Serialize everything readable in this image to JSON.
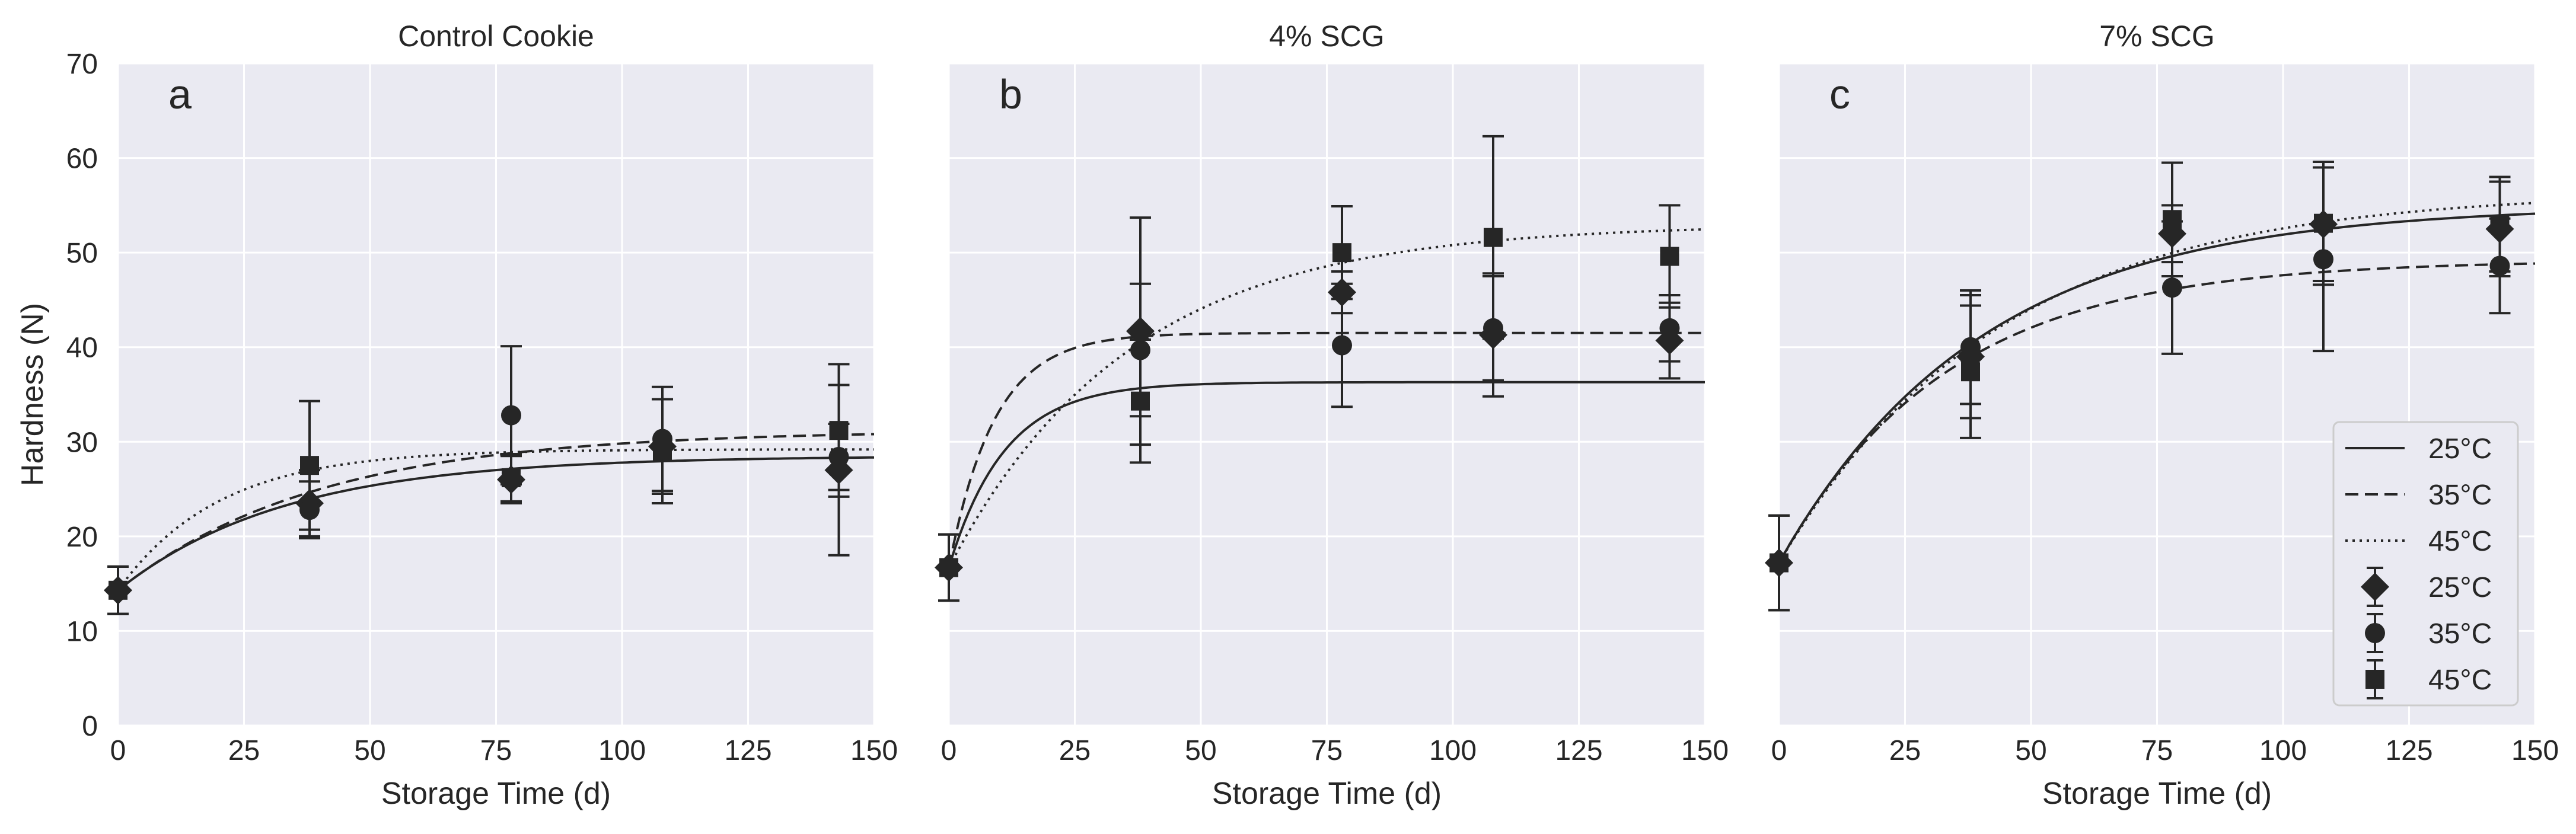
{
  "figure": {
    "ylabel": "Hardness (N)",
    "xlabel": "Storage Time (d)",
    "legend": {
      "placement": "lower-right of panel c",
      "entries": [
        {
          "label": "25°C",
          "kind": "line",
          "style": "solid"
        },
        {
          "label": "35°C",
          "kind": "line",
          "style": "dashed"
        },
        {
          "label": "45°C",
          "kind": "line",
          "style": "dotted"
        },
        {
          "label": "25°C",
          "kind": "marker",
          "marker": "diamond"
        },
        {
          "label": "35°C",
          "kind": "marker",
          "marker": "circle"
        },
        {
          "label": "45°C",
          "kind": "marker",
          "marker": "square"
        }
      ]
    },
    "colors": {
      "panel_bg": "#eaeaf2",
      "grid": "#ffffff",
      "ink": "#262626"
    }
  },
  "chart_data": [
    {
      "type": "scatter",
      "panel_letter": "a",
      "title": "Control Cookie",
      "xlabel": "Storage Time (d)",
      "ylabel": "Hardness (N)",
      "xlim": [
        0,
        150
      ],
      "ylim": [
        0,
        70
      ],
      "xticks": [
        0,
        25,
        50,
        75,
        100,
        125,
        150
      ],
      "yticks": [
        0,
        10,
        20,
        30,
        40,
        50,
        60,
        70
      ],
      "grid": true,
      "series": [
        {
          "name": "25°C",
          "marker": "diamond",
          "line": "solid",
          "points": [
            {
              "x": 0,
              "y": 14.3,
              "err": 2.5
            },
            {
              "x": 38,
              "y": 23.5,
              "err": 3.5
            },
            {
              "x": 78,
              "y": 26.0,
              "err": 2.5
            },
            {
              "x": 108,
              "y": 29.5,
              "err": 5.0
            },
            {
              "x": 143,
              "y": 27.0,
              "err": 9.0
            }
          ],
          "fit": {
            "y0": 14.3,
            "ymax": 28.5,
            "k": 0.03
          }
        },
        {
          "name": "35°C",
          "marker": "circle",
          "line": "dashed",
          "points": [
            {
              "x": 0,
              "y": 14.3,
              "err": 2.5
            },
            {
              "x": 38,
              "y": 22.8,
              "err": 3.0
            },
            {
              "x": 78,
              "y": 32.8,
              "err": 7.3
            },
            {
              "x": 108,
              "y": 30.3,
              "err": 5.5
            },
            {
              "x": 143,
              "y": 28.4,
              "err": 3.5
            }
          ],
          "fit": {
            "y0": 14.3,
            "ymax": 31.2,
            "k": 0.025
          }
        },
        {
          "name": "45°C",
          "marker": "square",
          "line": "dotted",
          "points": [
            {
              "x": 0,
              "y": 14.3,
              "err": 2.5
            },
            {
              "x": 38,
              "y": 27.5,
              "err": 6.8
            },
            {
              "x": 78,
              "y": 26.2,
              "err": 2.5
            },
            {
              "x": 108,
              "y": 29.0,
              "err": 5.5
            },
            {
              "x": 143,
              "y": 31.2,
              "err": 7.0
            }
          ],
          "fit": {
            "y0": 14.3,
            "ymax": 29.2,
            "k": 0.05
          }
        }
      ]
    },
    {
      "type": "scatter",
      "panel_letter": "b",
      "title": "4% SCG",
      "xlabel": "Storage Time (d)",
      "ylabel": "",
      "xlim": [
        0,
        150
      ],
      "ylim": [
        0,
        70
      ],
      "xticks": [
        0,
        25,
        50,
        75,
        100,
        125,
        150
      ],
      "yticks": [
        0,
        10,
        20,
        30,
        40,
        50,
        60,
        70
      ],
      "grid": true,
      "series": [
        {
          "name": "25°C",
          "marker": "diamond",
          "line": "solid",
          "points": [
            {
              "x": 0,
              "y": 16.7,
              "err": 3.5
            },
            {
              "x": 38,
              "y": 41.7,
              "err": 12.0
            },
            {
              "x": 78,
              "y": 45.8,
              "err": 2.2
            },
            {
              "x": 108,
              "y": 41.3,
              "err": 6.5
            },
            {
              "x": 143,
              "y": 40.7,
              "err": 4.0
            }
          ],
          "fit": {
            "y0": 16.7,
            "ymax": 36.3,
            "k": 0.09
          }
        },
        {
          "name": "35°C",
          "marker": "circle",
          "line": "dashed",
          "points": [
            {
              "x": 0,
              "y": 16.7,
              "err": 3.5
            },
            {
              "x": 38,
              "y": 39.7,
              "err": 7.0
            },
            {
              "x": 78,
              "y": 40.2,
              "err": 6.5
            },
            {
              "x": 108,
              "y": 42.0,
              "err": 5.5
            },
            {
              "x": 143,
              "y": 42.0,
              "err": 3.5
            }
          ],
          "fit": {
            "y0": 16.7,
            "ymax": 41.5,
            "k": 0.11
          }
        },
        {
          "name": "45°C",
          "marker": "square",
          "line": "dotted",
          "points": [
            {
              "x": 0,
              "y": 16.7,
              "err": 3.5
            },
            {
              "x": 38,
              "y": 34.3,
              "err": 6.5
            },
            {
              "x": 78,
              "y": 50.0,
              "err": 4.9
            },
            {
              "x": 108,
              "y": 51.6,
              "err": 10.7
            },
            {
              "x": 143,
              "y": 49.6,
              "err": 5.4
            }
          ],
          "fit": {
            "y0": 16.7,
            "ymax": 53.0,
            "k": 0.028
          }
        }
      ]
    },
    {
      "type": "scatter",
      "panel_letter": "c",
      "title": "7% SCG",
      "xlabel": "Storage Time (d)",
      "ylabel": "",
      "xlim": [
        0,
        150
      ],
      "ylim": [
        0,
        70
      ],
      "xticks": [
        0,
        25,
        50,
        75,
        100,
        125,
        150
      ],
      "yticks": [
        0,
        10,
        20,
        30,
        40,
        50,
        60,
        70
      ],
      "grid": true,
      "series": [
        {
          "name": "25°C",
          "marker": "diamond",
          "line": "solid",
          "points": [
            {
              "x": 0,
              "y": 17.2,
              "err": 5.0
            },
            {
              "x": 38,
              "y": 39.0,
              "err": 6.5
            },
            {
              "x": 78,
              "y": 52.0,
              "err": 3.0
            },
            {
              "x": 108,
              "y": 53.0,
              "err": 6.0
            },
            {
              "x": 143,
              "y": 52.5,
              "err": 5.0
            }
          ],
          "fit": {
            "y0": 17.2,
            "ymax": 55.0,
            "k": 0.025
          }
        },
        {
          "name": "35°C",
          "marker": "circle",
          "line": "dashed",
          "points": [
            {
              "x": 0,
              "y": 17.2,
              "err": 5.0
            },
            {
              "x": 38,
              "y": 40.0,
              "err": 6.0
            },
            {
              "x": 78,
              "y": 46.3,
              "err": 7.0
            },
            {
              "x": 108,
              "y": 49.3,
              "err": 9.7
            },
            {
              "x": 143,
              "y": 48.6,
              "err": 5.0
            }
          ],
          "fit": {
            "y0": 17.2,
            "ymax": 49.2,
            "k": 0.03
          }
        },
        {
          "name": "45°C",
          "marker": "square",
          "line": "dotted",
          "points": [
            {
              "x": 0,
              "y": 17.2,
              "err": 5.0
            },
            {
              "x": 38,
              "y": 37.4,
              "err": 7.0
            },
            {
              "x": 78,
              "y": 53.5,
              "err": 6.0
            },
            {
              "x": 108,
              "y": 53.1,
              "err": 6.5
            },
            {
              "x": 143,
              "y": 53.0,
              "err": 5.0
            }
          ],
          "fit": {
            "y0": 17.2,
            "ymax": 56.5,
            "k": 0.023
          }
        }
      ]
    }
  ]
}
